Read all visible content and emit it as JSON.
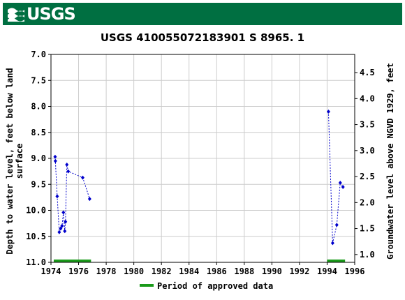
{
  "header": {
    "logo_text": "USGS",
    "logo_icon": "usgs-wave-icon",
    "banner_color": "#006f41"
  },
  "chart_data": {
    "type": "scatter",
    "title": "USGS 410055072183901 S  8965. 1",
    "ylabel_left_lines": [
      "Depth to water level, feet below land",
      "surface"
    ],
    "ylabel_right": "Groundwater level above NGVD 1929, feet",
    "xlim": [
      1974,
      1996
    ],
    "ylim_left": [
      11.0,
      7.0
    ],
    "ylim_right": [
      0.85,
      4.85
    ],
    "x_ticks": [
      "1974",
      "1976",
      "1978",
      "1980",
      "1982",
      "1984",
      "1986",
      "1988",
      "1990",
      "1992",
      "1994",
      "1996"
    ],
    "y_ticks_left": [
      "7.0",
      "7.5",
      "8.0",
      "8.5",
      "9.0",
      "9.5",
      "10.0",
      "10.5",
      "11.0"
    ],
    "y_ticks_right": [
      "1.0",
      "1.5",
      "2.0",
      "2.5",
      "3.0",
      "3.5",
      "4.0",
      "4.5"
    ],
    "grid": true,
    "series": [
      {
        "color": "#0000cc",
        "segments": [
          [
            {
              "x": 1974.3,
              "y": 8.97
            },
            {
              "x": 1974.32,
              "y": 9.05
            },
            {
              "x": 1974.45,
              "y": 9.73
            },
            {
              "x": 1974.6,
              "y": 10.42
            },
            {
              "x": 1974.7,
              "y": 10.35
            },
            {
              "x": 1974.8,
              "y": 10.3
            },
            {
              "x": 1974.9,
              "y": 10.04
            },
            {
              "x": 1975.0,
              "y": 10.4
            },
            {
              "x": 1975.05,
              "y": 10.22
            },
            {
              "x": 1975.15,
              "y": 9.12
            },
            {
              "x": 1975.25,
              "y": 9.25
            },
            {
              "x": 1976.3,
              "y": 9.37
            },
            {
              "x": 1976.8,
              "y": 9.78
            }
          ],
          [
            {
              "x": 1994.1,
              "y": 8.1
            },
            {
              "x": 1994.4,
              "y": 10.63
            },
            {
              "x": 1994.7,
              "y": 10.28
            },
            {
              "x": 1994.95,
              "y": 9.47
            },
            {
              "x": 1995.15,
              "y": 9.55
            }
          ]
        ]
      }
    ],
    "approved_periods": [
      [
        1974.2,
        1976.9
      ],
      [
        1994.0,
        1995.3
      ]
    ],
    "approved_color": "#1a9a1a",
    "legend": {
      "label": "Period of approved data",
      "position": "bottom-center"
    }
  }
}
